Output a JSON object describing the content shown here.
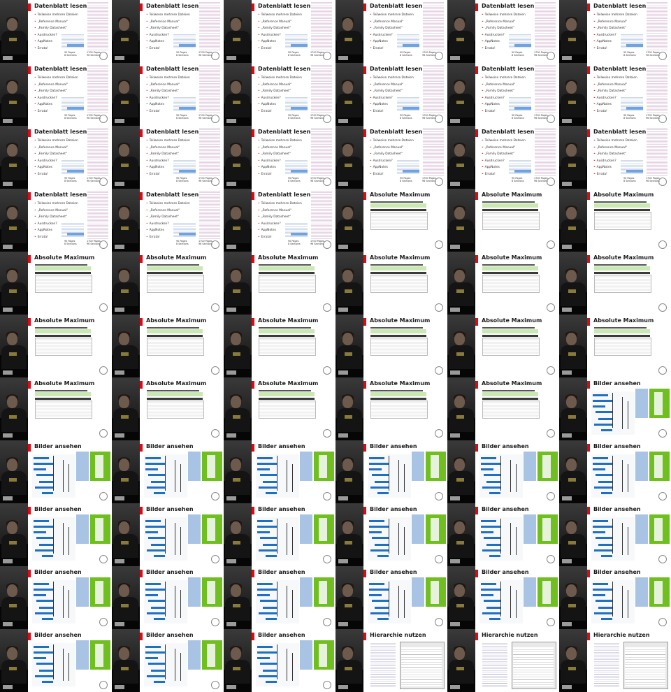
{
  "grid": {
    "columns": 6,
    "rows": 11
  },
  "slides": {
    "datenblatt": {
      "title": "Datenblatt lesen",
      "bullets": [
        "Teilweise mehrere Dateien",
        "„Reference Manual“",
        "„Family Datasheet“",
        "Ausdrucken?",
        "AppNotes",
        "Errata!"
      ],
      "pages_left": [
        "90 Pages",
        "8 Sections"
      ],
      "pages_right": [
        "1700 Pages",
        "96 Sections"
      ]
    },
    "absolute": {
      "title": "Absolute Maximum"
    },
    "bilder": {
      "title": "Bilder ansehen"
    },
    "hierarchie": {
      "title": "Hierarchie nutzen"
    }
  },
  "tiles": [
    "datenblatt",
    "datenblatt",
    "datenblatt",
    "datenblatt",
    "datenblatt",
    "datenblatt",
    "datenblatt",
    "datenblatt",
    "datenblatt",
    "datenblatt",
    "datenblatt",
    "datenblatt",
    "datenblatt",
    "datenblatt",
    "datenblatt",
    "datenblatt",
    "datenblatt",
    "datenblatt",
    "datenblatt",
    "datenblatt",
    "datenblatt",
    "absolute",
    "absolute",
    "absolute",
    "absolute",
    "absolute",
    "absolute",
    "absolute",
    "absolute",
    "absolute",
    "absolute",
    "absolute",
    "absolute",
    "absolute",
    "absolute",
    "absolute",
    "absolute",
    "absolute",
    "absolute",
    "absolute",
    "absolute",
    "bilder",
    "bilder",
    "bilder",
    "bilder",
    "bilder",
    "bilder",
    "bilder",
    "bilder",
    "bilder",
    "bilder",
    "bilder",
    "bilder",
    "bilder",
    "bilder",
    "bilder",
    "bilder",
    "bilder",
    "bilder",
    "bilder",
    "bilder",
    "bilder",
    "bilder",
    "hierarchie",
    "hierarchie",
    "hierarchie"
  ]
}
